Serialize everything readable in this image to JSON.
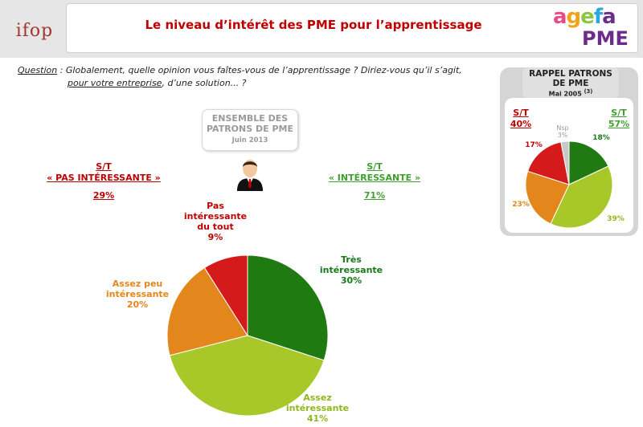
{
  "header": {
    "brand": "ifop",
    "title": "Le niveau d’intérêt des PME pour l’apprentissage",
    "logo_word_1": "agefa",
    "logo_word_2": "PME"
  },
  "question": {
    "label": "Question",
    "line1": " : Globalement, quelle opinion vous faîtes-vous de l’apprentissage ? Diriez-vous qu’il s’agit,",
    "line2_underlined": "pour votre entreprise",
    "line2_rest": ", d’une solution... ?"
  },
  "ensemble": {
    "title": "ENSEMBLE DES PATRONS DE PME",
    "date": "Juin 2013"
  },
  "subtotals": {
    "negative": {
      "label": "S/T",
      "sublabel": "« PAS INTÉRESSANTE »",
      "value": "29%"
    },
    "positive": {
      "label": "S/T",
      "sublabel": "« INTÉRESSANTE »",
      "value": "71%"
    }
  },
  "rappel": {
    "title": "RAPPEL PATRONS DE PME",
    "date": "Mai 2005",
    "footnote": "(3)",
    "st_negative": {
      "label": "S/T",
      "value": "40%"
    },
    "st_positive": {
      "label": "S/T",
      "value": "57%"
    }
  },
  "colors": {
    "title_red": "#c00000",
    "positive_green": "#3fa02e",
    "tres": "#1f7a12",
    "assez": "#a8c82a",
    "assez_peu": "#e3861c",
    "pas": "#d41a1a",
    "nsp": "#c8c8c8"
  },
  "chart_data": [
    {
      "type": "pie",
      "slices": [
        {
          "name": "Très intéressante",
          "value": 30,
          "label": "30%",
          "color": "#1f7a12"
        },
        {
          "name": "Assez intéressante",
          "value": 41,
          "label": "41%",
          "color": "#a8c82a"
        },
        {
          "name": "Assez peu intéressante",
          "value": 20,
          "label": "20%",
          "color": "#e3861c"
        },
        {
          "name": "Pas intéressante du tout",
          "value": 9,
          "label": "9%",
          "color": "#d41a1a"
        }
      ]
    },
    {
      "type": "pie",
      "slices": [
        {
          "name": "Très intéressante",
          "value": 18,
          "label": "18%",
          "color": "#1f7a12"
        },
        {
          "name": "Assez intéressante",
          "value": 39,
          "label": "39%",
          "color": "#a8c82a"
        },
        {
          "name": "Assez peu intéressante",
          "value": 23,
          "label": "23%",
          "color": "#e3861c"
        },
        {
          "name": "Pas intéressante du tout",
          "value": 17,
          "label": "17%",
          "color": "#d41a1a"
        },
        {
          "name": "Nsp",
          "value": 3,
          "label": "3%",
          "color": "#c8c8c8"
        }
      ]
    }
  ]
}
